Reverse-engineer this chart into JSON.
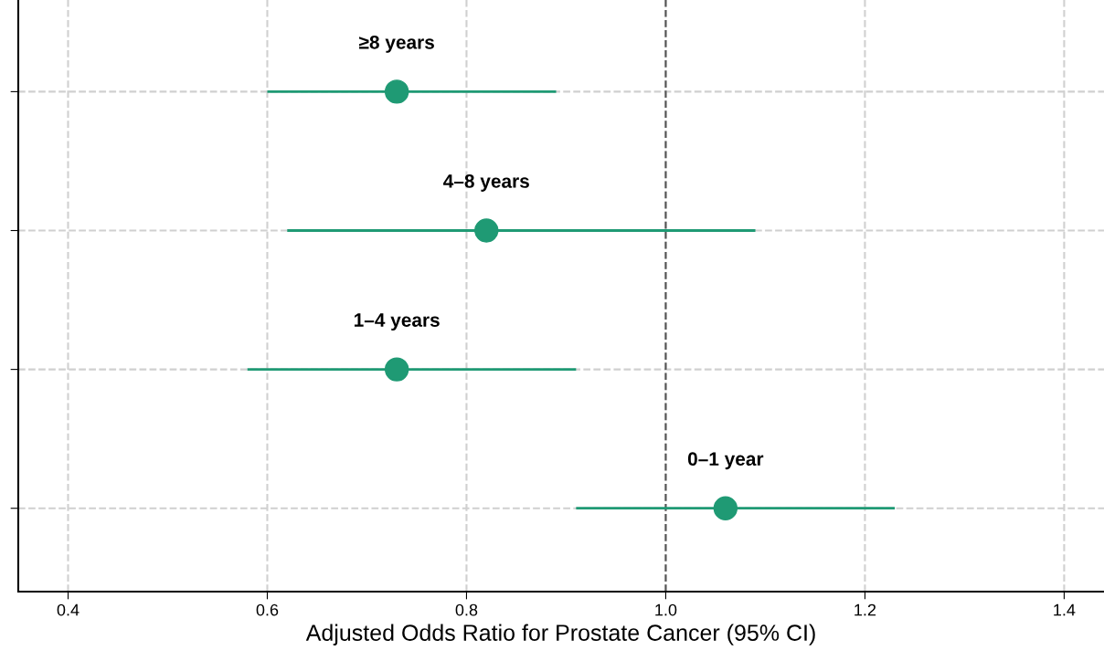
{
  "chart_data": {
    "type": "scatter",
    "orientation": "horizontal",
    "xlabel": "Adjusted Odds Ratio for Prostate Cancer (95% CI)",
    "categories": [
      "≥8 years",
      "4–8 years",
      "1–4 years",
      "0–1 year"
    ],
    "color": "#1f9a74",
    "values": [
      0.73,
      0.82,
      0.73,
      1.06
    ],
    "errors": [
      [
        0.6,
        0.89
      ],
      [
        0.62,
        1.09
      ],
      [
        0.58,
        0.91
      ],
      [
        0.91,
        1.23
      ]
    ],
    "xlim": [
      0.35,
      1.44
    ],
    "xticks": [
      0.4,
      0.6,
      0.8,
      {
        "value": 1.0,
        "label": "1.0"
      },
      1.2,
      1.4
    ],
    "ref_lines": [
      {
        "axis": "x",
        "value": 1.0,
        "color": "#555555",
        "line_style": "dashed"
      }
    ],
    "grid": true,
    "tick_labels": "x",
    "marker": "circle"
  }
}
